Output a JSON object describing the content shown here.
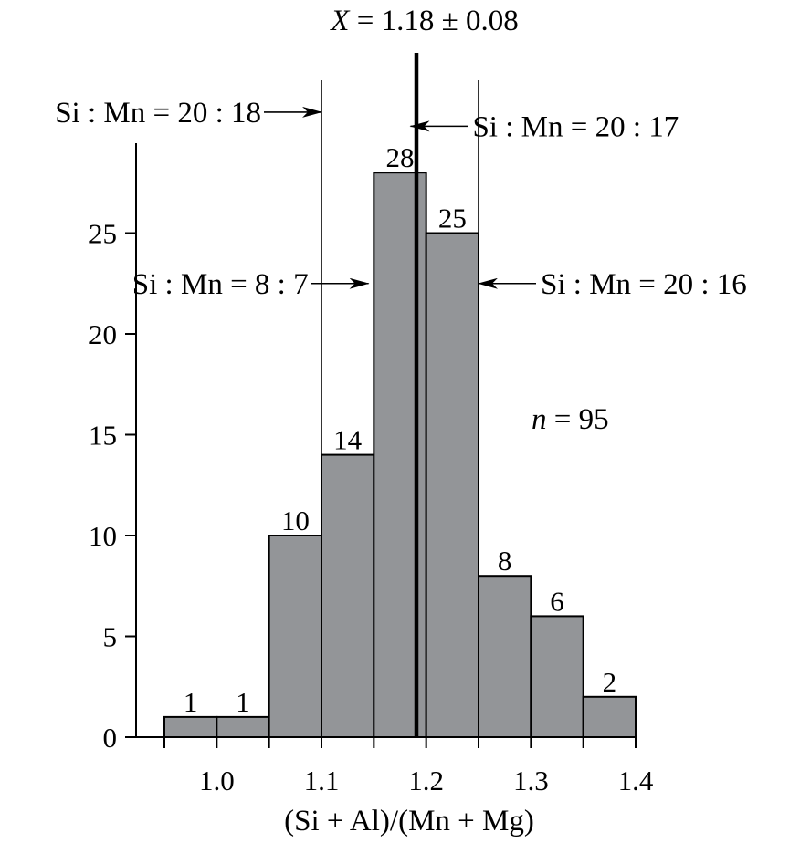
{
  "chart_data": {
    "type": "bar",
    "title": "",
    "xlabel": "(Si + Al)/(Mn + Mg)",
    "ylabel": "",
    "bins": [
      {
        "x0": 0.95,
        "x1": 1.0,
        "value": 1
      },
      {
        "x0": 1.0,
        "x1": 1.05,
        "value": 1
      },
      {
        "x0": 1.05,
        "x1": 1.1,
        "value": 10
      },
      {
        "x0": 1.1,
        "x1": 1.15,
        "value": 14
      },
      {
        "x0": 1.15,
        "x1": 1.2,
        "value": 28
      },
      {
        "x0": 1.2,
        "x1": 1.25,
        "value": 25
      },
      {
        "x0": 1.25,
        "x1": 1.3,
        "value": 8
      },
      {
        "x0": 1.3,
        "x1": 1.35,
        "value": 6
      },
      {
        "x0": 1.35,
        "x1": 1.4,
        "value": 2
      }
    ],
    "bar_labels": [
      "1",
      "1",
      "10",
      "14",
      "28",
      "25",
      "8",
      "6",
      "2"
    ],
    "xlim": [
      0.95,
      1.4
    ],
    "ylim": [
      0,
      30
    ],
    "x_ticks": [
      1.0,
      1.1,
      1.2,
      1.3,
      1.4
    ],
    "x_tick_labels": [
      "1.0",
      "1.1",
      "1.2",
      "1.3",
      "1.4"
    ],
    "y_ticks": [
      0,
      5,
      10,
      15,
      20,
      25
    ],
    "y_tick_labels": [
      "0",
      "5",
      "10",
      "15",
      "20",
      "25"
    ],
    "grid": false,
    "bar_color": "#939598",
    "mean": {
      "value": 1.18,
      "label_symbol": "X",
      "label_text": " = 1.18 ± 0.08"
    },
    "reference_lines": [
      {
        "x": 1.1,
        "label": "Si : Mn = 20 : 18"
      },
      {
        "x": 1.25,
        "label": "Si : Mn = 20 : 16"
      }
    ],
    "annotations": [
      {
        "label": "Si : Mn = 20 : 18",
        "x": 1.1,
        "y": 31.0,
        "side": "left"
      },
      {
        "label": "Si : Mn = 20 : 17",
        "x": 1.185,
        "y": 30.3,
        "side": "right"
      },
      {
        "label": "Si : Mn = 8 : 7",
        "x": 1.145,
        "y": 22.5,
        "side": "left"
      },
      {
        "label": "Si : Mn = 20 : 16",
        "x": 1.25,
        "y": 22.5,
        "side": "right"
      }
    ],
    "n_label": {
      "symbol": "n",
      "text": " = 95"
    }
  }
}
